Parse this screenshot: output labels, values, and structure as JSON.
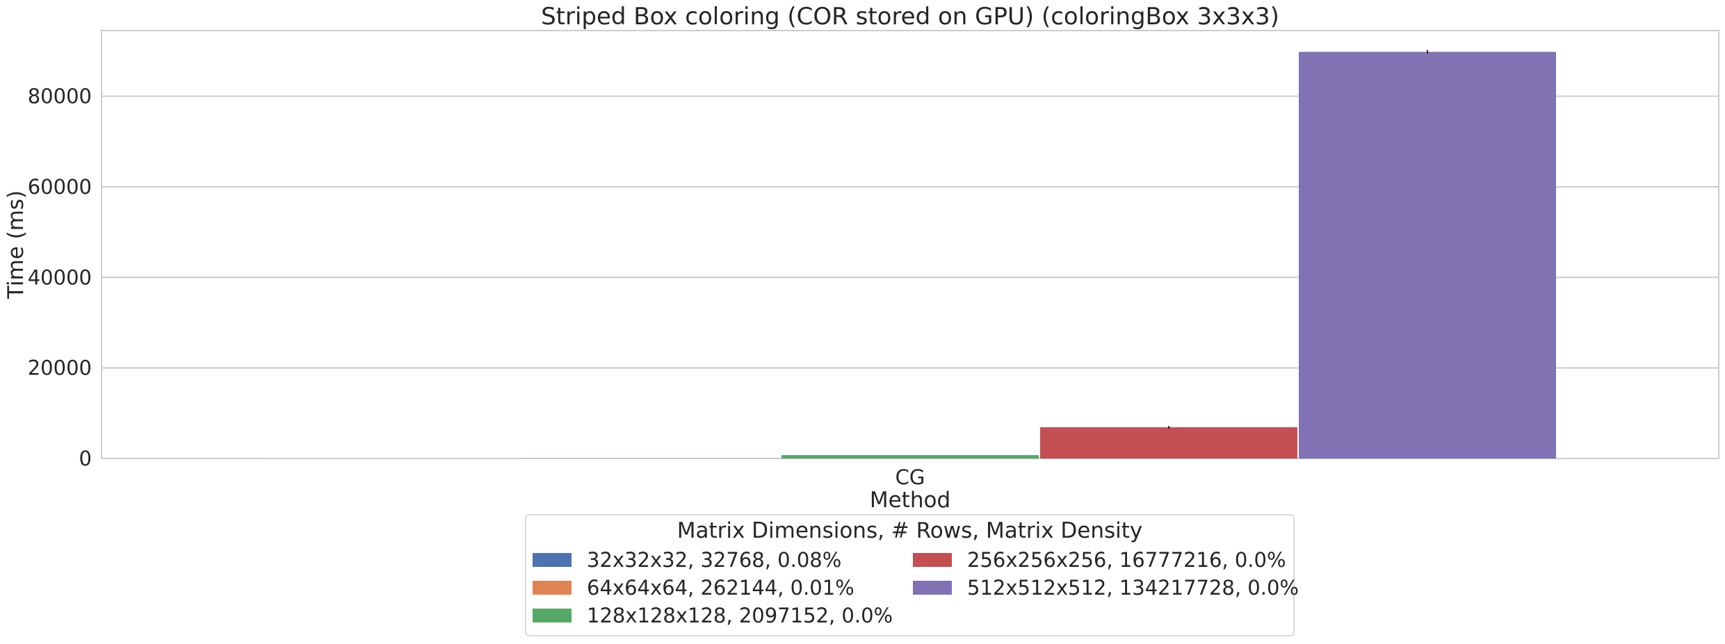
{
  "chart_data": {
    "type": "bar",
    "title": "Striped Box coloring (COR stored on GPU) (coloringBox 3x3x3)",
    "xlabel": "Method",
    "ylabel": "Time (ms)",
    "categories": [
      "CG"
    ],
    "ylim": [
      0,
      94500
    ],
    "yticks": [
      0,
      20000,
      40000,
      60000,
      80000
    ],
    "grid": true,
    "legend_title": "Matrix Dimensions, # Rows, Matrix Density",
    "legend_position": "bottom-center",
    "series": [
      {
        "name": "32x32x32, 32768, 0.08%",
        "color": "#4c72b0",
        "values": [
          3
        ],
        "error": [
          0
        ]
      },
      {
        "name": "64x64x64, 262144, 0.01%",
        "color": "#dd8452",
        "values": [
          30
        ],
        "error": [
          0
        ]
      },
      {
        "name": "128x128x128, 2097152, 0.0%",
        "color": "#55a868",
        "values": [
          750
        ],
        "error": [
          0
        ]
      },
      {
        "name": "256x256x256, 16777216, 0.0%",
        "color": "#c44e52",
        "values": [
          6900
        ],
        "error": [
          300
        ]
      },
      {
        "name": "512x512x512, 134217728, 0.0%",
        "color": "#8172b3",
        "values": [
          89800
        ],
        "error": [
          400
        ]
      }
    ]
  }
}
